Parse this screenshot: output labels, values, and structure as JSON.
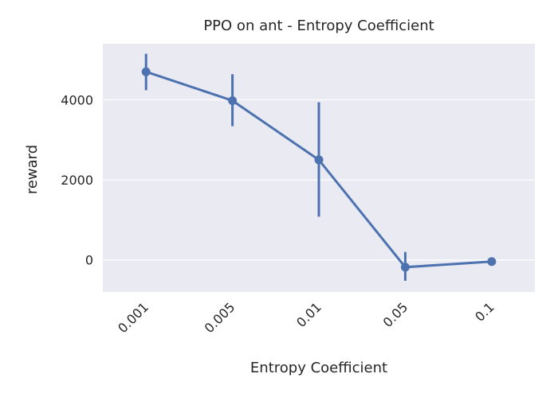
{
  "chart_data": {
    "type": "pointplot",
    "title": "PPO on ant - Entropy Coefficient",
    "x_label": "Entropy Coefficient",
    "y_label": "reward",
    "categories": [
      "0.001",
      "0.005",
      "0.01",
      "0.05",
      "0.1"
    ],
    "series": [
      {
        "color": "#4c72b0",
        "values": [
          4700,
          3980,
          2500,
          -180,
          -40
        ],
        "ci_lower": [
          4240,
          3340,
          1080,
          -520,
          -60
        ],
        "ci_upper": [
          5150,
          4640,
          3940,
          200,
          -20
        ]
      }
    ],
    "ylim": [
      -800,
      5400
    ],
    "yticks": [
      0,
      2000,
      4000
    ],
    "grid": true
  }
}
